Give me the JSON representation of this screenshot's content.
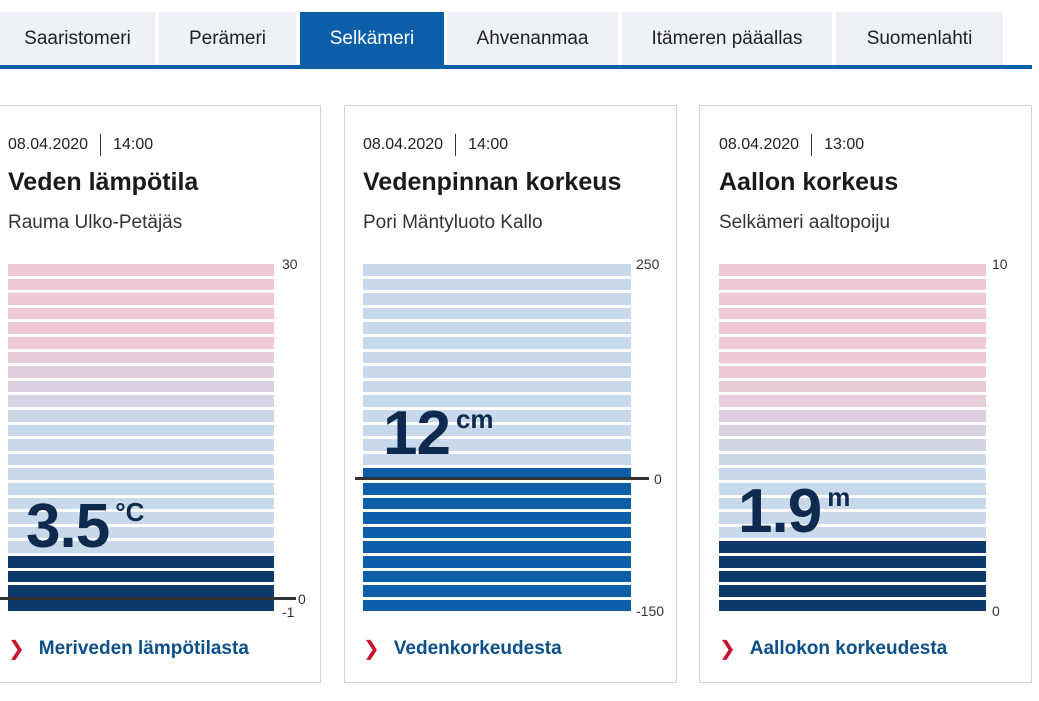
{
  "tabs": [
    {
      "label": "Saaristomeri"
    },
    {
      "label": "Perämeri"
    },
    {
      "label": "Selkämeri"
    },
    {
      "label": "Ahvenanmaa"
    },
    {
      "label": "Itämeren pääallas"
    },
    {
      "label": "Suomenlahti"
    }
  ],
  "cards": [
    {
      "date": "08.04.2020",
      "time": "14:00",
      "title": "Veden lämpötila",
      "station": "Rauma Ulko-Petäjäs",
      "value": "3.5",
      "unit": "°C",
      "scale_max": "30",
      "scale_zero": "0",
      "scale_min": "-1",
      "link": "Meriveden lämpötilasta",
      "colors": {
        "light_top": "#f0c9d5",
        "light_mid": "#c7d9ea",
        "dark": "#0d3a6a"
      }
    },
    {
      "date": "08.04.2020",
      "time": "14:00",
      "title": "Vedenpinnan korkeus",
      "station": "Pori Mäntyluoto Kallo",
      "value": "12",
      "unit": "cm",
      "scale_max": "250",
      "scale_zero": "0",
      "scale_min": "-150",
      "link": "Vedenkorkeudesta",
      "colors": {
        "light": "#c7d9ea",
        "dark": "#0b5ea8"
      }
    },
    {
      "date": "08.04.2020",
      "time": "13:00",
      "title": "Aallon korkeus",
      "station": "Selkämeri aaltopoiju",
      "value": "1.9",
      "unit": "m",
      "scale_max": "10",
      "scale_min": "0",
      "link": "Aallokon korkeudesta",
      "colors": {
        "light_top": "#f0c9d5",
        "light_mid": "#c7d9ea",
        "dark": "#0d3a6a"
      }
    }
  ]
}
